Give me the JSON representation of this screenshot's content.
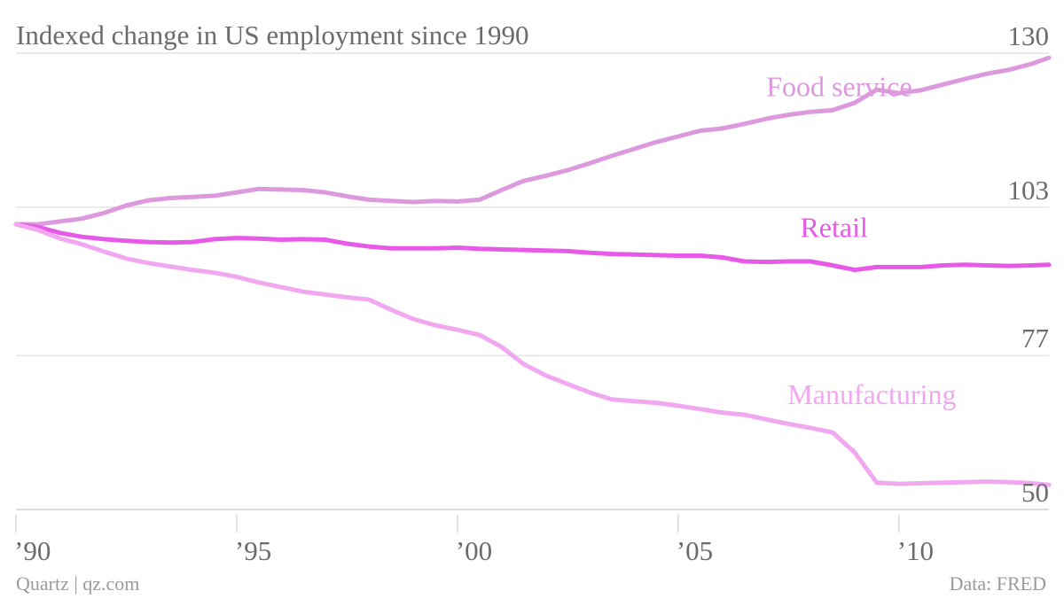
{
  "chart_data": {
    "type": "line",
    "title": "Indexed change in US employment since 1990",
    "source_left": "Quartz | qz.com",
    "source_right": "Data: FRED",
    "xlim": [
      1990.0,
      2013.4
    ],
    "ylim": [
      50,
      130
    ],
    "y_ticks": [
      {
        "value": 130,
        "label": "130"
      },
      {
        "value": 103,
        "label": "103"
      },
      {
        "value": 77,
        "label": "77"
      },
      {
        "value": 50,
        "label": "50"
      }
    ],
    "x_ticks": [
      {
        "value": 1990,
        "label": "’90"
      },
      {
        "value": 1995,
        "label": "’95"
      },
      {
        "value": 2000,
        "label": "’00"
      },
      {
        "value": 2005,
        "label": "’05"
      },
      {
        "value": 2010,
        "label": "’10"
      }
    ],
    "grid": true,
    "series": [
      {
        "name": "Food service",
        "color": "#dd99dd",
        "x": [
          1990.0,
          1990.5,
          1991.0,
          1991.5,
          1992.0,
          1992.5,
          1993.0,
          1993.5,
          1994.0,
          1994.5,
          1995.0,
          1995.5,
          1996.0,
          1996.5,
          1997.0,
          1997.5,
          1998.0,
          1998.5,
          1999.0,
          1999.5,
          2000.0,
          2000.5,
          2001.0,
          2001.5,
          2002.0,
          2002.5,
          2003.0,
          2003.5,
          2004.0,
          2004.5,
          2005.0,
          2005.5,
          2006.0,
          2006.5,
          2007.0,
          2007.5,
          2008.0,
          2008.5,
          2009.0,
          2009.5,
          2010.0,
          2010.5,
          2011.0,
          2011.5,
          2012.0,
          2012.5,
          2013.0,
          2013.4
        ],
        "y": [
          100.0,
          100.0,
          100.5,
          101.0,
          102.0,
          103.3,
          104.2,
          104.6,
          104.8,
          105.0,
          105.6,
          106.2,
          106.1,
          106.0,
          105.6,
          104.9,
          104.3,
          104.1,
          103.9,
          104.1,
          104.0,
          104.3,
          106.0,
          107.6,
          108.5,
          109.5,
          110.7,
          112.0,
          113.2,
          114.4,
          115.4,
          116.4,
          116.8,
          117.6,
          118.5,
          119.2,
          119.7,
          120.0,
          121.3,
          123.6,
          123.0,
          123.5,
          124.5,
          125.5,
          126.4,
          127.1,
          128.1,
          129.2
        ]
      },
      {
        "name": "Retail",
        "color": "#e75ae7",
        "x": [
          1990.0,
          1990.5,
          1991.0,
          1991.5,
          1992.0,
          1992.5,
          1993.0,
          1993.5,
          1994.0,
          1994.5,
          1995.0,
          1995.5,
          1996.0,
          1996.5,
          1997.0,
          1997.5,
          1998.0,
          1998.5,
          1999.0,
          1999.5,
          2000.0,
          2000.5,
          2001.0,
          2001.5,
          2002.0,
          2002.5,
          2003.0,
          2003.5,
          2004.0,
          2004.5,
          2005.0,
          2005.5,
          2006.0,
          2006.5,
          2007.0,
          2007.5,
          2008.0,
          2008.5,
          2009.0,
          2009.5,
          2010.0,
          2010.5,
          2011.0,
          2011.5,
          2012.0,
          2012.5,
          2013.0,
          2013.4
        ],
        "y": [
          100.0,
          99.5,
          98.5,
          97.8,
          97.4,
          97.1,
          96.9,
          96.8,
          96.9,
          97.4,
          97.6,
          97.5,
          97.3,
          97.4,
          97.3,
          96.6,
          96.1,
          95.8,
          95.8,
          95.8,
          95.9,
          95.7,
          95.6,
          95.5,
          95.4,
          95.3,
          95.0,
          94.8,
          94.7,
          94.6,
          94.5,
          94.5,
          94.2,
          93.5,
          93.4,
          93.5,
          93.5,
          92.8,
          92.0,
          92.5,
          92.5,
          92.5,
          92.8,
          92.9,
          92.8,
          92.7,
          92.8,
          92.9
        ]
      },
      {
        "name": "Manufacturing",
        "color": "#f1a8f1",
        "x": [
          1990.0,
          1990.5,
          1991.0,
          1991.5,
          1992.0,
          1992.5,
          1993.0,
          1993.5,
          1994.0,
          1994.5,
          1995.0,
          1995.5,
          1996.0,
          1996.5,
          1997.0,
          1997.5,
          1998.0,
          1998.5,
          1999.0,
          1999.5,
          2000.0,
          2000.5,
          2001.0,
          2001.5,
          2002.0,
          2002.5,
          2003.0,
          2003.5,
          2004.0,
          2004.5,
          2005.0,
          2005.5,
          2006.0,
          2006.5,
          2007.0,
          2007.5,
          2008.0,
          2008.5,
          2009.0,
          2009.5,
          2010.0,
          2010.5,
          2011.0,
          2011.5,
          2012.0,
          2012.5,
          2013.0,
          2013.4
        ],
        "y": [
          100.0,
          99.0,
          97.5,
          96.5,
          95.2,
          94.0,
          93.2,
          92.6,
          92.0,
          91.5,
          90.8,
          89.8,
          89.0,
          88.2,
          87.7,
          87.2,
          86.8,
          85.0,
          83.4,
          82.3,
          81.5,
          80.6,
          78.5,
          75.5,
          73.5,
          72.0,
          70.5,
          69.3,
          69.0,
          68.7,
          68.2,
          67.6,
          67.0,
          66.6,
          65.8,
          65.0,
          64.3,
          63.5,
          60.0,
          54.7,
          54.5,
          54.6,
          54.7,
          54.8,
          54.9,
          54.8,
          54.6,
          54.3
        ]
      }
    ],
    "annotations": [
      {
        "series": "Food service",
        "text": "Food service"
      },
      {
        "series": "Retail",
        "text": "Retail"
      },
      {
        "series": "Manufacturing",
        "text": "Manufacturing"
      }
    ]
  }
}
